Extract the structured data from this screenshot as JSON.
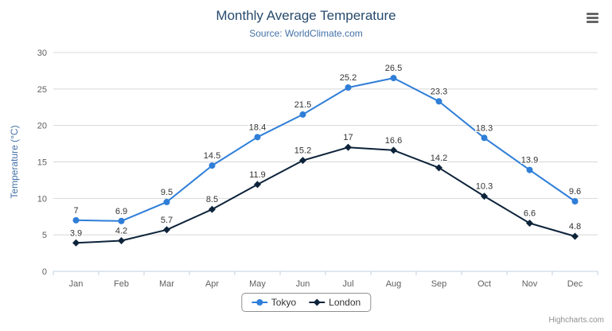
{
  "chart_data": {
    "type": "line",
    "title": "Monthly Average Temperature",
    "subtitle": "Source: WorldClimate.com",
    "xlabel": "",
    "ylabel": "Temperature (°C)",
    "categories": [
      "Jan",
      "Feb",
      "Mar",
      "Apr",
      "May",
      "Jun",
      "Jul",
      "Aug",
      "Sep",
      "Oct",
      "Nov",
      "Dec"
    ],
    "series": [
      {
        "name": "Tokyo",
        "color": "#2f7ed8",
        "marker": "circle",
        "values": [
          7,
          6.9,
          9.5,
          14.5,
          18.4,
          21.5,
          25.2,
          26.5,
          23.3,
          18.3,
          13.9,
          9.6
        ]
      },
      {
        "name": "London",
        "color": "#0d233a",
        "marker": "diamond",
        "values": [
          3.9,
          4.2,
          5.7,
          8.5,
          11.9,
          15.2,
          17,
          16.6,
          14.2,
          10.3,
          6.6,
          4.8
        ]
      }
    ],
    "ylim": [
      0,
      30
    ],
    "ytick_step": 5,
    "grid": true,
    "legend_position": "bottom"
  },
  "credit": "Highcharts.com",
  "colors": {
    "title": "#274b6d",
    "subtitle": "#4572a7",
    "axis_title": "#4572a7",
    "axis_labels": "#606060",
    "grid": "#d8d8d8",
    "axis_line": "#c0d0e0",
    "data_label": "#333333",
    "legend_border": "#909090",
    "credit": "#909090"
  }
}
